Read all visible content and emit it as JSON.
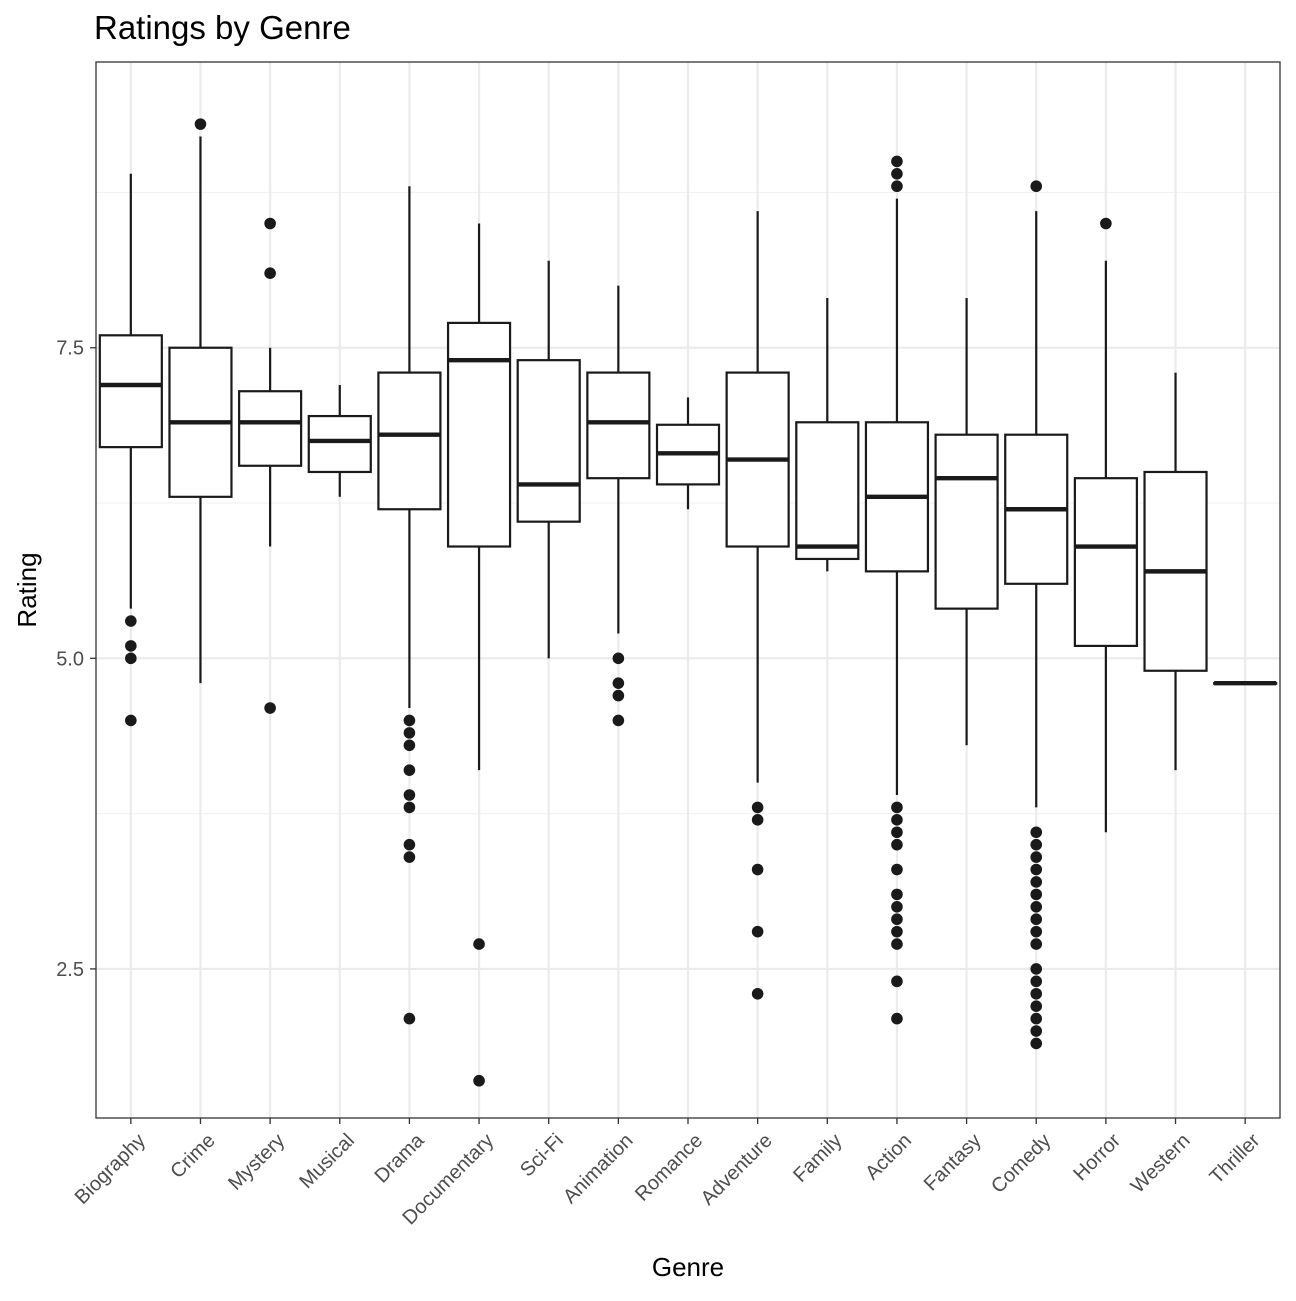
{
  "chart_data": {
    "type": "boxplot",
    "title": "Ratings by Genre",
    "xlabel": "Genre",
    "ylabel": "Rating",
    "ylim": [
      1.3,
      9.8
    ],
    "yticks": [
      2.5,
      5.0,
      7.5
    ],
    "ytick_labels": [
      "2.5",
      "5.0",
      "7.5"
    ],
    "grid": true,
    "colors": {
      "box_stroke": "#1a1a1a",
      "box_fill": "#ffffff",
      "outlier": "#1a1a1a",
      "grid_major": "#ebebeb",
      "grid_minor": "#f2f2f2",
      "panel_border": "#333333",
      "tick_text": "#4d4d4d"
    },
    "categories": [
      "Biography",
      "Crime",
      "Mystery",
      "Musical",
      "Drama",
      "Documentary",
      "Sci-Fi",
      "Animation",
      "Romance",
      "Adventure",
      "Family",
      "Action",
      "Fantasy",
      "Comedy",
      "Horror",
      "Western",
      "Thriller"
    ],
    "boxes": [
      {
        "category": "Biography",
        "whisker_low": 5.4,
        "q1": 6.7,
        "median": 7.2,
        "q3": 7.6,
        "whisker_high": 8.9,
        "outliers": [
          5.3,
          5.1,
          5.0,
          4.5
        ]
      },
      {
        "category": "Crime",
        "whisker_low": 4.8,
        "q1": 6.3,
        "median": 6.9,
        "q3": 7.5,
        "whisker_high": 9.2,
        "outliers": [
          9.3
        ]
      },
      {
        "category": "Mystery",
        "whisker_low": 5.9,
        "q1": 6.55,
        "median": 6.9,
        "q3": 7.15,
        "whisker_high": 7.5,
        "outliers": [
          8.5,
          8.1,
          4.6
        ]
      },
      {
        "category": "Musical",
        "whisker_low": 6.3,
        "q1": 6.5,
        "median": 6.75,
        "q3": 6.95,
        "whisker_high": 7.2,
        "outliers": []
      },
      {
        "category": "Drama",
        "whisker_low": 4.6,
        "q1": 6.2,
        "median": 6.8,
        "q3": 7.3,
        "whisker_high": 8.8,
        "outliers": [
          4.5,
          4.4,
          4.3,
          4.1,
          3.9,
          3.8,
          3.5,
          3.4,
          2.1
        ]
      },
      {
        "category": "Documentary",
        "whisker_low": 4.1,
        "q1": 5.9,
        "median": 7.4,
        "q3": 7.7,
        "whisker_high": 8.5,
        "outliers": [
          2.7,
          1.6
        ]
      },
      {
        "category": "Sci-Fi",
        "whisker_low": 5.0,
        "q1": 6.1,
        "median": 6.4,
        "q3": 7.4,
        "whisker_high": 8.2,
        "outliers": []
      },
      {
        "category": "Animation",
        "whisker_low": 5.2,
        "q1": 6.45,
        "median": 6.9,
        "q3": 7.3,
        "whisker_high": 8.0,
        "outliers": [
          5.0,
          4.8,
          4.7,
          4.5
        ]
      },
      {
        "category": "Romance",
        "whisker_low": 6.2,
        "q1": 6.4,
        "median": 6.65,
        "q3": 6.88,
        "whisker_high": 7.1,
        "outliers": []
      },
      {
        "category": "Adventure",
        "whisker_low": 4.0,
        "q1": 5.9,
        "median": 6.6,
        "q3": 7.3,
        "whisker_high": 8.6,
        "outliers": [
          3.8,
          3.7,
          3.3,
          2.8,
          2.3
        ]
      },
      {
        "category": "Family",
        "whisker_low": 5.7,
        "q1": 5.8,
        "median": 5.9,
        "q3": 6.9,
        "whisker_high": 7.9,
        "outliers": []
      },
      {
        "category": "Action",
        "whisker_low": 3.9,
        "q1": 5.7,
        "median": 6.3,
        "q3": 6.9,
        "whisker_high": 8.7,
        "outliers": [
          9.0,
          8.9,
          8.8,
          3.8,
          3.7,
          3.6,
          3.5,
          3.3,
          3.1,
          3.0,
          2.9,
          2.8,
          2.7,
          2.4,
          2.1
        ]
      },
      {
        "category": "Fantasy",
        "whisker_low": 4.3,
        "q1": 5.4,
        "median": 6.45,
        "q3": 6.8,
        "whisker_high": 7.9,
        "outliers": []
      },
      {
        "category": "Comedy",
        "whisker_low": 3.8,
        "q1": 5.6,
        "median": 6.2,
        "q3": 6.8,
        "whisker_high": 8.6,
        "outliers": [
          8.8,
          3.6,
          3.5,
          3.4,
          3.3,
          3.2,
          3.1,
          3.0,
          2.9,
          2.8,
          2.7,
          2.5,
          2.4,
          2.3,
          2.2,
          2.1,
          2.0,
          1.9
        ]
      },
      {
        "category": "Horror",
        "whisker_low": 3.6,
        "q1": 5.1,
        "median": 5.9,
        "q3": 6.45,
        "whisker_high": 8.2,
        "outliers": [
          8.5
        ]
      },
      {
        "category": "Western",
        "whisker_low": 4.1,
        "q1": 4.9,
        "median": 5.7,
        "q3": 6.5,
        "whisker_high": 7.3,
        "outliers": []
      },
      {
        "category": "Thriller",
        "whisker_low": 4.8,
        "q1": 4.8,
        "median": 4.8,
        "q3": 4.8,
        "whisker_high": 4.8,
        "outliers": []
      }
    ]
  }
}
